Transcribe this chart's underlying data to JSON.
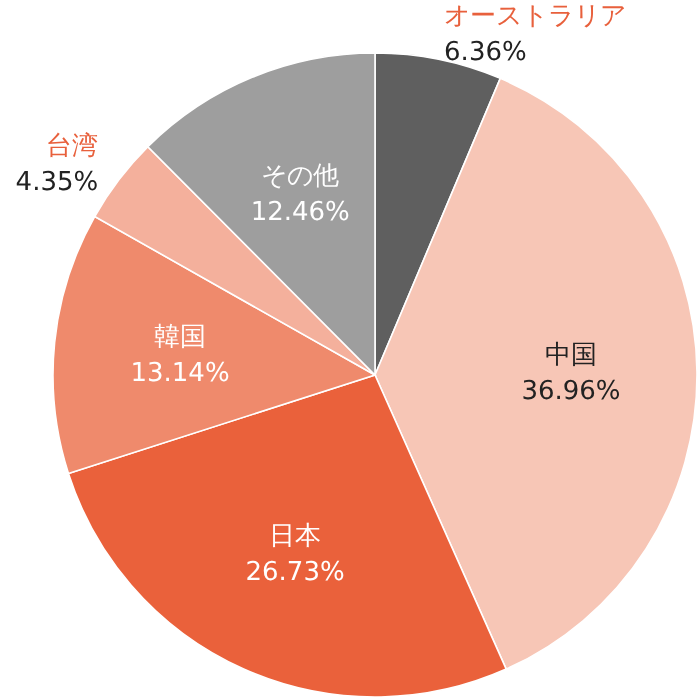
{
  "chart_data": {
    "type": "pie",
    "categories": [
      "オーストラリア",
      "中国",
      "日本",
      "韓国",
      "台湾",
      "その他"
    ],
    "values": [
      6.36,
      36.96,
      26.73,
      13.14,
      4.35,
      12.46
    ],
    "value_labels": [
      "6.36%",
      "36.96%",
      "26.73%",
      "13.14%",
      "4.35%",
      "12.46%"
    ],
    "colors": [
      "#5f5f5f",
      "#f7c6b6",
      "#ea613b",
      "#ef8a6c",
      "#f4b09c",
      "#9e9e9e"
    ]
  }
}
